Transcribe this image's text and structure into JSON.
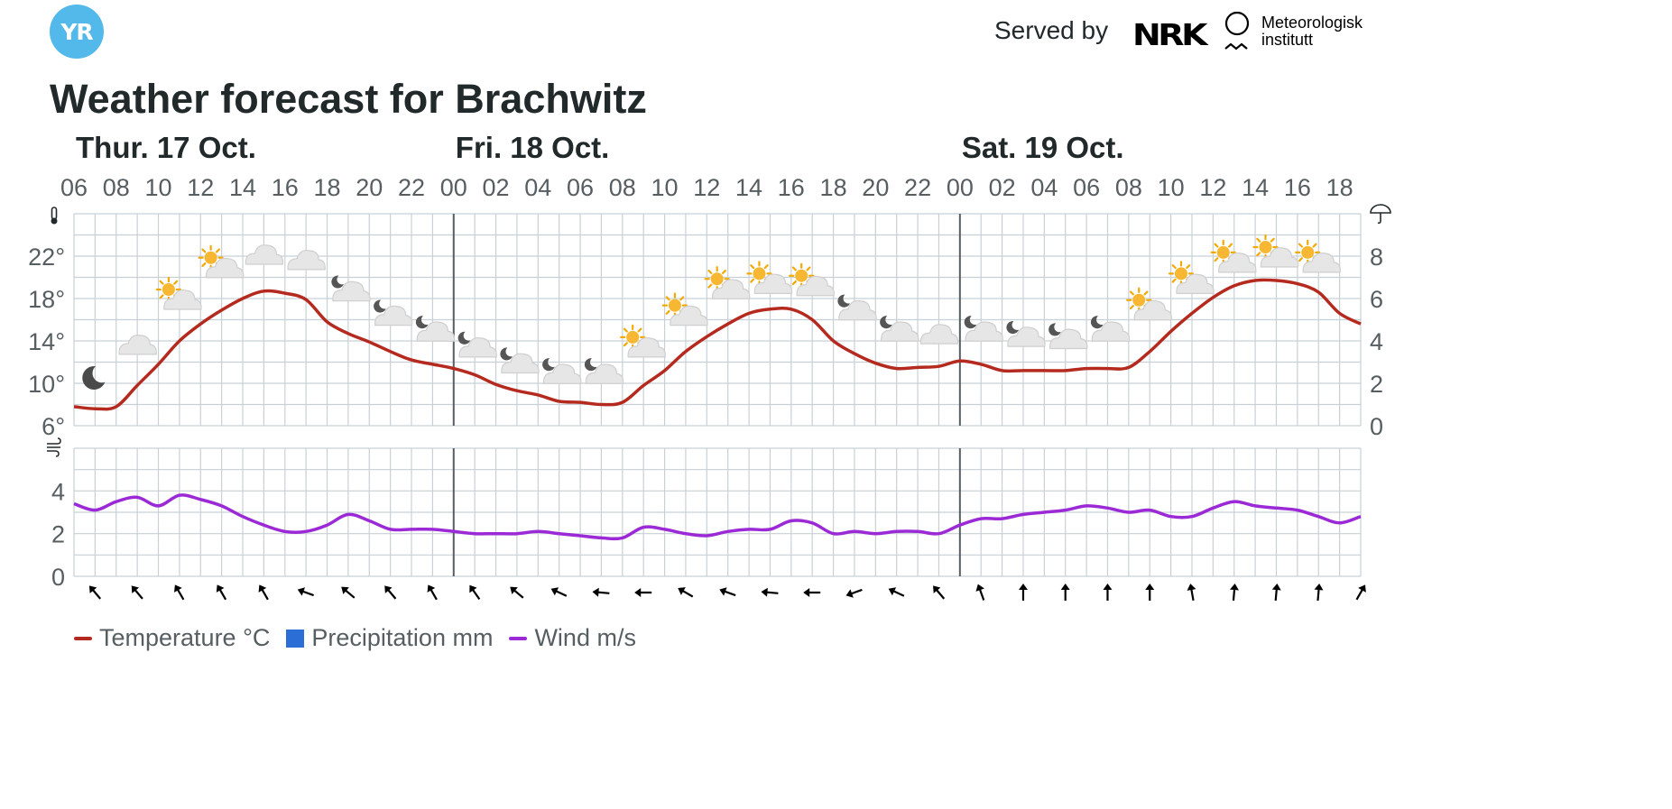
{
  "header": {
    "logo_text": "YR",
    "served_by": "Served by",
    "nrk_logo_text": "NRK",
    "met_line1": "Meteorologisk",
    "met_line2": "institutt"
  },
  "page_title": "Weather forecast for Brachwitz",
  "colors": {
    "temperature": "#b52a1f",
    "precipitation": "#2b6fd6",
    "wind": "#9b2ad6",
    "grid": "#c8d0d6",
    "day_divider": "#565e61",
    "yr_blue": "#53b9ea"
  },
  "legend": [
    {
      "label": "Temperature °C",
      "color": "#b52a1f",
      "shape": "line"
    },
    {
      "label": "Precipitation mm",
      "color": "#2b6fd6",
      "shape": "square"
    },
    {
      "label": "Wind m/s",
      "color": "#9b2ad6",
      "shape": "line"
    }
  ],
  "chart_data": {
    "type": "line",
    "days": [
      {
        "label": "Thur. 17 Oct.",
        "start_hour": 6
      },
      {
        "label": "Fri. 18 Oct.",
        "start_hour": 24
      },
      {
        "label": "Sat. 19 Oct.",
        "start_hour": 48
      }
    ],
    "x_range_hours": [
      6,
      67
    ],
    "x_tick_labels": [
      "06",
      "08",
      "10",
      "12",
      "14",
      "16",
      "18",
      "20",
      "22",
      "00",
      "02",
      "04",
      "06",
      "08",
      "10",
      "12",
      "14",
      "16",
      "18",
      "20",
      "22",
      "00",
      "02",
      "04",
      "06",
      "08",
      "10",
      "12",
      "14",
      "16",
      "18"
    ],
    "temperature": {
      "unit": "°C",
      "ylim": [
        6,
        26
      ],
      "y_ticks": [
        6,
        10,
        14,
        18,
        22
      ],
      "y_tick_labels": [
        "6°",
        "10°",
        "14°",
        "18°",
        "22°"
      ],
      "hours": [
        6,
        7,
        8,
        9,
        10,
        11,
        12,
        13,
        14,
        15,
        16,
        17,
        18,
        19,
        20,
        21,
        22,
        23,
        24,
        25,
        26,
        27,
        28,
        29,
        30,
        31,
        32,
        33,
        34,
        35,
        36,
        37,
        38,
        39,
        40,
        41,
        42,
        43,
        44,
        45,
        46,
        47,
        48,
        49,
        50,
        51,
        52,
        53,
        54,
        55,
        56,
        57,
        58,
        59,
        60,
        61,
        62,
        63,
        64,
        65,
        66,
        67
      ],
      "values": [
        7.8,
        7.6,
        7.8,
        9.8,
        11.8,
        14.0,
        15.6,
        16.9,
        18.0,
        18.7,
        18.5,
        17.9,
        15.8,
        14.7,
        13.9,
        13.0,
        12.2,
        11.8,
        11.4,
        10.8,
        9.9,
        9.3,
        8.9,
        8.3,
        8.2,
        8.0,
        8.2,
        9.8,
        11.2,
        13.0,
        14.4,
        15.6,
        16.6,
        17.0,
        17.0,
        16.0,
        14.0,
        12.8,
        11.9,
        11.4,
        11.5,
        11.6,
        12.1,
        11.8,
        11.2,
        11.2,
        11.2,
        11.2,
        11.4,
        11.4,
        11.5,
        13.0,
        14.9,
        16.6,
        18.1,
        19.2,
        19.7,
        19.7,
        19.4,
        18.6,
        16.6,
        15.6
      ]
    },
    "precipitation": {
      "unit": "mm",
      "ylim": [
        0,
        10
      ],
      "y_ticks": [
        0,
        2,
        4,
        6,
        8
      ],
      "y_tick_labels": [
        "0",
        "2",
        "4",
        "6",
        "8"
      ],
      "values": []
    },
    "wind": {
      "unit": "m/s",
      "ylim": [
        0,
        6
      ],
      "y_ticks": [
        0,
        2,
        4
      ],
      "y_tick_labels": [
        "0",
        "2",
        "4"
      ],
      "hours": [
        6,
        7,
        8,
        9,
        10,
        11,
        12,
        13,
        14,
        15,
        16,
        17,
        18,
        19,
        20,
        21,
        22,
        23,
        24,
        25,
        26,
        27,
        28,
        29,
        30,
        31,
        32,
        33,
        34,
        35,
        36,
        37,
        38,
        39,
        40,
        41,
        42,
        43,
        44,
        45,
        46,
        47,
        48,
        49,
        50,
        51,
        52,
        53,
        54,
        55,
        56,
        57,
        58,
        59,
        60,
        61,
        62,
        63,
        64,
        65,
        66,
        67
      ],
      "values": [
        3.4,
        3.1,
        3.5,
        3.7,
        3.3,
        3.8,
        3.6,
        3.3,
        2.8,
        2.4,
        2.1,
        2.1,
        2.4,
        2.9,
        2.6,
        2.2,
        2.2,
        2.2,
        2.1,
        2.0,
        2.0,
        2.0,
        2.1,
        2.0,
        1.9,
        1.8,
        1.8,
        2.3,
        2.2,
        2.0,
        1.9,
        2.1,
        2.2,
        2.2,
        2.6,
        2.5,
        2.0,
        2.1,
        2.0,
        2.1,
        2.1,
        2.0,
        2.4,
        2.7,
        2.7,
        2.9,
        3.0,
        3.1,
        3.3,
        3.2,
        3.0,
        3.1,
        2.8,
        2.8,
        3.2,
        3.5,
        3.3,
        3.2,
        3.1,
        2.8,
        2.5,
        2.8
      ]
    },
    "weather_symbols": [
      {
        "hour": 7,
        "temp": 10.5,
        "symbol": "clearsky_night"
      },
      {
        "hour": 9,
        "temp": 13.5,
        "symbol": "cloudy"
      },
      {
        "hour": 11,
        "temp": 18.0,
        "symbol": "partlycloudy_day"
      },
      {
        "hour": 13,
        "temp": 21.0,
        "symbol": "partlycloudy_day"
      },
      {
        "hour": 15,
        "temp": 22.0,
        "symbol": "cloudy"
      },
      {
        "hour": 17,
        "temp": 21.5,
        "symbol": "cloudy"
      },
      {
        "hour": 19,
        "temp": 18.8,
        "symbol": "partlycloudy_night"
      },
      {
        "hour": 21,
        "temp": 16.5,
        "symbol": "partlycloudy_night"
      },
      {
        "hour": 23,
        "temp": 15.0,
        "symbol": "partlycloudy_night"
      },
      {
        "hour": 25,
        "temp": 13.5,
        "symbol": "partlycloudy_night"
      },
      {
        "hour": 27,
        "temp": 12.0,
        "symbol": "partlycloudy_night"
      },
      {
        "hour": 29,
        "temp": 11.0,
        "symbol": "partlycloudy_night"
      },
      {
        "hour": 31,
        "temp": 11.0,
        "symbol": "partlycloudy_night"
      },
      {
        "hour": 33,
        "temp": 13.5,
        "symbol": "partlycloudy_day"
      },
      {
        "hour": 35,
        "temp": 16.5,
        "symbol": "partlycloudy_day"
      },
      {
        "hour": 37,
        "temp": 19.0,
        "symbol": "partlycloudy_day"
      },
      {
        "hour": 39,
        "temp": 19.5,
        "symbol": "partlycloudy_day"
      },
      {
        "hour": 41,
        "temp": 19.3,
        "symbol": "partlycloudy_day"
      },
      {
        "hour": 43,
        "temp": 17.0,
        "symbol": "partlycloudy_night"
      },
      {
        "hour": 45,
        "temp": 15.0,
        "symbol": "partlycloudy_night"
      },
      {
        "hour": 47,
        "temp": 14.5,
        "symbol": "cloudy"
      },
      {
        "hour": 49,
        "temp": 15.0,
        "symbol": "partlycloudy_night"
      },
      {
        "hour": 51,
        "temp": 14.5,
        "symbol": "partlycloudy_night"
      },
      {
        "hour": 53,
        "temp": 14.3,
        "symbol": "partlycloudy_night"
      },
      {
        "hour": 55,
        "temp": 15.0,
        "symbol": "partlycloudy_night"
      },
      {
        "hour": 57,
        "temp": 17.0,
        "symbol": "partlycloudy_day"
      },
      {
        "hour": 59,
        "temp": 19.5,
        "symbol": "partlycloudy_day"
      },
      {
        "hour": 61,
        "temp": 21.5,
        "symbol": "partlycloudy_day"
      },
      {
        "hour": 63,
        "temp": 22.0,
        "symbol": "partlycloudy_day"
      },
      {
        "hour": 65,
        "temp": 21.5,
        "symbol": "partlycloudy_day"
      }
    ],
    "wind_directions": [
      {
        "hour": 7,
        "towards_deg": 320
      },
      {
        "hour": 9,
        "towards_deg": 320
      },
      {
        "hour": 11,
        "towards_deg": 330
      },
      {
        "hour": 13,
        "towards_deg": 330
      },
      {
        "hour": 15,
        "towards_deg": 330
      },
      {
        "hour": 17,
        "towards_deg": 290
      },
      {
        "hour": 19,
        "towards_deg": 310
      },
      {
        "hour": 21,
        "towards_deg": 320
      },
      {
        "hour": 23,
        "towards_deg": 330
      },
      {
        "hour": 25,
        "towards_deg": 325
      },
      {
        "hour": 27,
        "towards_deg": 310
      },
      {
        "hour": 29,
        "towards_deg": 295
      },
      {
        "hour": 31,
        "towards_deg": 275
      },
      {
        "hour": 33,
        "towards_deg": 270
      },
      {
        "hour": 35,
        "towards_deg": 300
      },
      {
        "hour": 37,
        "towards_deg": 290
      },
      {
        "hour": 39,
        "towards_deg": 275
      },
      {
        "hour": 41,
        "towards_deg": 270
      },
      {
        "hour": 43,
        "towards_deg": 250
      },
      {
        "hour": 45,
        "towards_deg": 295
      },
      {
        "hour": 47,
        "towards_deg": 320
      },
      {
        "hour": 49,
        "towards_deg": 340
      },
      {
        "hour": 51,
        "towards_deg": 0
      },
      {
        "hour": 53,
        "towards_deg": 0
      },
      {
        "hour": 55,
        "towards_deg": 0
      },
      {
        "hour": 57,
        "towards_deg": 0
      },
      {
        "hour": 59,
        "towards_deg": 350
      },
      {
        "hour": 61,
        "towards_deg": 5
      },
      {
        "hour": 63,
        "towards_deg": 5
      },
      {
        "hour": 65,
        "towards_deg": 5
      },
      {
        "hour": 67,
        "towards_deg": 30
      }
    ],
    "grid": true,
    "legend_position": "bottom-left"
  }
}
